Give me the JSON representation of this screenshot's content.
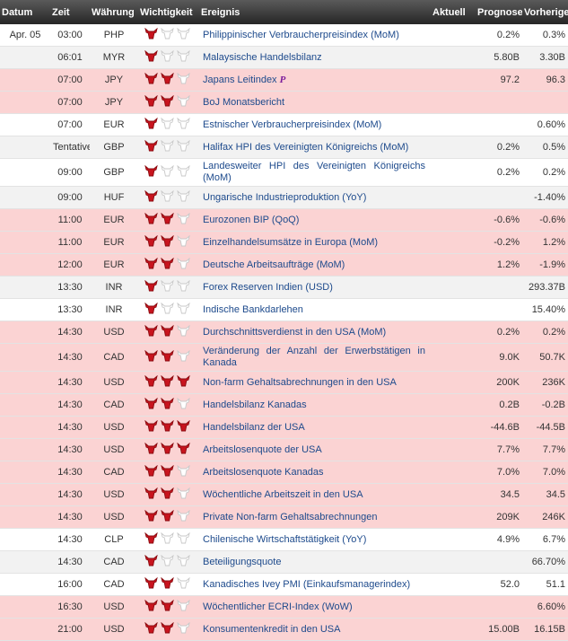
{
  "columns": [
    "Datum",
    "Zeit",
    "Währung",
    "Wichtigkeit",
    "Ereignis",
    "Aktuell",
    "Prognose",
    "Vorherige"
  ],
  "rows": [
    {
      "date": "Apr. 05",
      "time": "03:00",
      "currency": "PHP",
      "importance": 1,
      "event": "Philippinischer Verbraucherpreisindex (MoM)",
      "forecast": "0.2%",
      "previous": "0.3%",
      "shade": "white"
    },
    {
      "time": "06:01",
      "currency": "MYR",
      "importance": 1,
      "event": "Malaysische Handelsbilanz",
      "forecast": "5.80B",
      "previous": "3.30B",
      "shade": "gray"
    },
    {
      "time": "07:00",
      "currency": "JPY",
      "importance": 2,
      "event": "Japans Leitindex",
      "flag": "P",
      "forecast": "97.2",
      "previous": "96.3",
      "shade": "pink"
    },
    {
      "time": "07:00",
      "currency": "JPY",
      "importance": 2,
      "event": "BoJ Monatsbericht",
      "shade": "pink"
    },
    {
      "time": "07:00",
      "currency": "EUR",
      "importance": 1,
      "event": "Estnischer Verbraucherpreisindex (MoM)",
      "previous": "0.60%",
      "shade": "white"
    },
    {
      "time": "Tentative",
      "currency": "GBP",
      "importance": 1,
      "event": "Halifax HPI des Vereinigten Königreichs (MoM)",
      "forecast": "0.2%",
      "previous": "0.5%",
      "shade": "gray"
    },
    {
      "time": "09:00",
      "currency": "GBP",
      "importance": 1,
      "event": "Landesweiter HPI des Vereinigten Königreichs (MoM)",
      "forecast": "0.2%",
      "previous": "0.2%",
      "shade": "white"
    },
    {
      "time": "09:00",
      "currency": "HUF",
      "importance": 1,
      "event": "Ungarische Industrieproduktion (YoY)",
      "previous": "-1.40%",
      "shade": "gray"
    },
    {
      "time": "11:00",
      "currency": "EUR",
      "importance": 2,
      "event": "Eurozonen BIP (QoQ)",
      "forecast": "-0.6%",
      "previous": "-0.6%",
      "shade": "pink"
    },
    {
      "time": "11:00",
      "currency": "EUR",
      "importance": 2,
      "event": "Einzelhandelsumsätze in Europa (MoM)",
      "forecast": "-0.2%",
      "previous": "1.2%",
      "shade": "pink"
    },
    {
      "time": "12:00",
      "currency": "EUR",
      "importance": 2,
      "event": "Deutsche Arbeitsaufträge (MoM)",
      "forecast": "1.2%",
      "previous": "-1.9%",
      "shade": "pink"
    },
    {
      "time": "13:30",
      "currency": "INR",
      "importance": 1,
      "event": "Forex Reserven Indien (USD)",
      "previous": "293.37B",
      "shade": "gray"
    },
    {
      "time": "13:30",
      "currency": "INR",
      "importance": 1,
      "event": "Indische Bankdarlehen",
      "previous": "15.40%",
      "shade": "white"
    },
    {
      "time": "14:30",
      "currency": "USD",
      "importance": 2,
      "event": "Durchschnittsverdienst in den USA (MoM)",
      "forecast": "0.2%",
      "previous": "0.2%",
      "shade": "pink"
    },
    {
      "time": "14:30",
      "currency": "CAD",
      "importance": 2,
      "event": "Veränderung der Anzahl der Erwerbstätigen in Kanada",
      "forecast": "9.0K",
      "previous": "50.7K",
      "shade": "pink"
    },
    {
      "time": "14:30",
      "currency": "USD",
      "importance": 3,
      "event": "Non-farm Gehaltsabrechnungen in den USA",
      "forecast": "200K",
      "previous": "236K",
      "shade": "pink"
    },
    {
      "time": "14:30",
      "currency": "CAD",
      "importance": 2,
      "event": "Handelsbilanz Kanadas",
      "forecast": "0.2B",
      "previous": "-0.2B",
      "shade": "pink"
    },
    {
      "time": "14:30",
      "currency": "USD",
      "importance": 3,
      "event": "Handelsbilanz der USA",
      "forecast": "-44.6B",
      "previous": "-44.5B",
      "shade": "pink"
    },
    {
      "time": "14:30",
      "currency": "USD",
      "importance": 3,
      "event": "Arbeitslosenquote der USA",
      "forecast": "7.7%",
      "previous": "7.7%",
      "shade": "pink"
    },
    {
      "time": "14:30",
      "currency": "CAD",
      "importance": 2,
      "event": "Arbeitslosenquote Kanadas",
      "forecast": "7.0%",
      "previous": "7.0%",
      "shade": "pink"
    },
    {
      "time": "14:30",
      "currency": "USD",
      "importance": 2,
      "event": "Wöchentliche Arbeitszeit in den USA",
      "forecast": "34.5",
      "previous": "34.5",
      "shade": "pink"
    },
    {
      "time": "14:30",
      "currency": "USD",
      "importance": 2,
      "event": "Private Non-farm Gehaltsabrechnungen",
      "forecast": "209K",
      "previous": "246K",
      "shade": "pink"
    },
    {
      "time": "14:30",
      "currency": "CLP",
      "importance": 1,
      "event": "Chilenische Wirtschaftstätigkeit (YoY)",
      "forecast": "4.9%",
      "previous": "6.7%",
      "shade": "white"
    },
    {
      "time": "14:30",
      "currency": "CAD",
      "importance": 1,
      "event": "Beteiligungsquote",
      "previous": "66.70%",
      "shade": "gray"
    },
    {
      "time": "16:00",
      "currency": "CAD",
      "importance": 2,
      "event": "Kanadisches Ivey PMI (Einkaufsmanagerindex)",
      "forecast": "52.0",
      "previous": "51.1",
      "shade": "white"
    },
    {
      "time": "16:30",
      "currency": "USD",
      "importance": 2,
      "event": "Wöchentlicher ECRI-Index (WoW)",
      "previous": "6.60%",
      "shade": "pink"
    },
    {
      "time": "21:00",
      "currency": "USD",
      "importance": 2,
      "event": "Konsumentenkredit in den USA",
      "forecast": "15.00B",
      "previous": "16.15B",
      "shade": "pink"
    }
  ]
}
